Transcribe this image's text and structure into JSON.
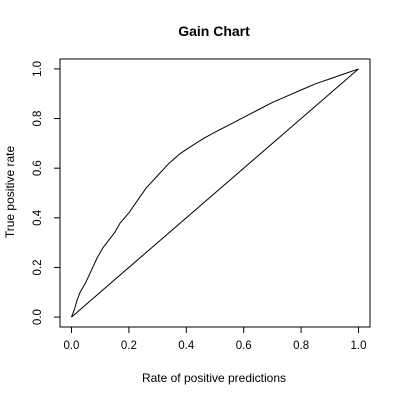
{
  "chart_data": {
    "type": "line",
    "title": "Gain Chart",
    "xlabel": "Rate of positive predictions",
    "ylabel": "True positive rate",
    "xlim": [
      -0.04,
      1.04
    ],
    "ylim": [
      -0.04,
      1.04
    ],
    "xticks": [
      0.0,
      0.2,
      0.4,
      0.6,
      0.8,
      1.0
    ],
    "xtick_labels": [
      "0.0",
      "0.2",
      "0.4",
      "0.6",
      "0.8",
      "1.0"
    ],
    "yticks": [
      0.0,
      0.2,
      0.4,
      0.6,
      0.8,
      1.0
    ],
    "ytick_labels": [
      "0.0",
      "0.2",
      "0.4",
      "0.6",
      "0.8",
      "1.0"
    ],
    "grid": false,
    "legend": "none",
    "line_color": "#000000",
    "series": [
      {
        "x": [
          0,
          0.01,
          0.02,
          0.03,
          0.05,
          0.07,
          0.09,
          0.11,
          0.13,
          0.15,
          0.17,
          0.2,
          0.23,
          0.26,
          0.3,
          0.34,
          0.38,
          0.42,
          0.46,
          0.5,
          0.55,
          0.6,
          0.65,
          0.7,
          0.75,
          0.8,
          0.85,
          0.9,
          0.95,
          1.0
        ],
        "y": [
          0,
          0.03,
          0.07,
          0.1,
          0.14,
          0.19,
          0.24,
          0.28,
          0.31,
          0.34,
          0.38,
          0.42,
          0.47,
          0.52,
          0.57,
          0.62,
          0.66,
          0.69,
          0.72,
          0.745,
          0.775,
          0.805,
          0.835,
          0.865,
          0.89,
          0.915,
          0.94,
          0.96,
          0.98,
          1.0
        ]
      },
      {
        "x": [
          0,
          1
        ],
        "y": [
          0,
          1
        ]
      }
    ]
  }
}
